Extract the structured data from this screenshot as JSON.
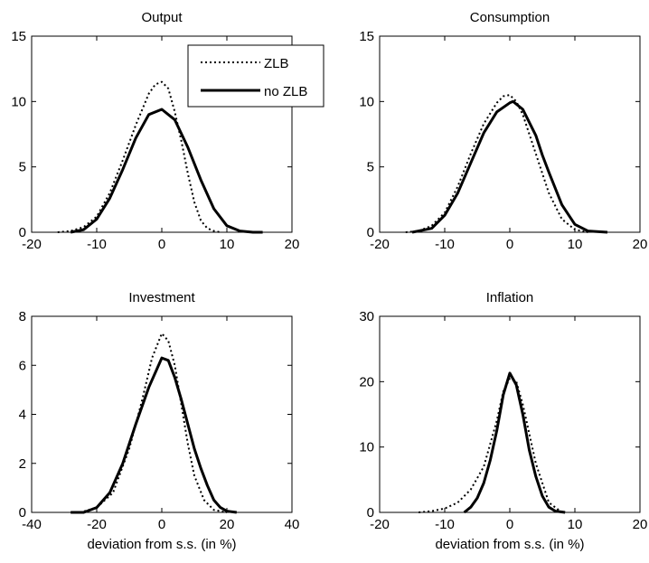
{
  "chart_data": [
    {
      "type": "line",
      "title": "Output",
      "xlabel": "",
      "ylabel": "",
      "xlim": [
        -20,
        20
      ],
      "ylim": [
        0,
        15
      ],
      "xticks": [
        -20,
        -10,
        0,
        10,
        20
      ],
      "yticks": [
        0,
        5,
        10,
        15
      ],
      "legend": {
        "placement": "top-right",
        "entries": [
          "ZLB",
          "no ZLB"
        ]
      },
      "series": [
        {
          "name": "ZLB",
          "style": "dotted",
          "x": [
            -16,
            -14,
            -12,
            -10,
            -8,
            -6,
            -4,
            -2,
            -1,
            0,
            1,
            2,
            3,
            4,
            5,
            6,
            7,
            8,
            9
          ],
          "y": [
            0,
            0.1,
            0.4,
            1.2,
            3.0,
            5.5,
            8.2,
            10.6,
            11.3,
            11.5,
            11.0,
            9.2,
            7.0,
            4.5,
            2.3,
            0.9,
            0.3,
            0.1,
            0
          ]
        },
        {
          "name": "no ZLB",
          "style": "solid",
          "x": [
            -14,
            -12,
            -10,
            -8,
            -6,
            -4,
            -2,
            0,
            2,
            4,
            6,
            8,
            10,
            12,
            14,
            15.5
          ],
          "y": [
            0,
            0.2,
            1.0,
            2.6,
            4.8,
            7.2,
            9.0,
            9.4,
            8.6,
            6.5,
            4.0,
            1.8,
            0.5,
            0.1,
            0,
            0
          ]
        }
      ]
    },
    {
      "type": "line",
      "title": "Consumption",
      "xlabel": "",
      "ylabel": "",
      "xlim": [
        -20,
        20
      ],
      "ylim": [
        0,
        15
      ],
      "xticks": [
        -20,
        -10,
        0,
        10,
        20
      ],
      "yticks": [
        0,
        5,
        10,
        15
      ],
      "series": [
        {
          "name": "ZLB",
          "style": "dotted",
          "x": [
            -16,
            -14,
            -12,
            -10,
            -8,
            -6,
            -4,
            -2,
            -1,
            0,
            1,
            2,
            4,
            6,
            8,
            10,
            12
          ],
          "y": [
            0,
            0.1,
            0.5,
            1.5,
            3.5,
            6.0,
            8.3,
            9.9,
            10.4,
            10.5,
            10.0,
            9.0,
            6.0,
            3.0,
            1.0,
            0.2,
            0
          ]
        },
        {
          "name": "no ZLB",
          "style": "solid",
          "x": [
            -15,
            -12,
            -10,
            -8,
            -6,
            -4,
            -2,
            0,
            0.5,
            2,
            4,
            5,
            6,
            8,
            10,
            12,
            15
          ],
          "y": [
            0,
            0.3,
            1.3,
            3.0,
            5.3,
            7.6,
            9.2,
            9.9,
            10.0,
            9.4,
            7.4,
            5.9,
            4.6,
            2.1,
            0.6,
            0.1,
            0
          ]
        }
      ]
    },
    {
      "type": "line",
      "title": "Investment",
      "xlabel": "deviation from s.s. (in %)",
      "ylabel": "",
      "xlim": [
        -40,
        40
      ],
      "ylim": [
        0,
        8
      ],
      "xticks": [
        -40,
        -20,
        0,
        20,
        40
      ],
      "yticks": [
        0,
        2,
        4,
        6,
        8
      ],
      "series": [
        {
          "name": "ZLB",
          "style": "dotted",
          "x": [
            -28,
            -25,
            -20,
            -15,
            -10,
            -6,
            -3,
            0,
            2,
            4,
            6,
            8,
            10,
            13,
            16,
            20
          ],
          "y": [
            0,
            0,
            0.2,
            0.8,
            2.6,
            4.6,
            6.3,
            7.3,
            7.0,
            6.0,
            4.4,
            2.8,
            1.5,
            0.5,
            0.1,
            0
          ]
        },
        {
          "name": "no ZLB",
          "style": "solid",
          "x": [
            -28,
            -24,
            -20,
            -16,
            -12,
            -8,
            -4,
            0,
            2,
            4,
            6,
            8,
            10,
            12,
            14,
            16,
            18,
            20,
            23
          ],
          "y": [
            0,
            0,
            0.2,
            0.8,
            2.0,
            3.6,
            5.1,
            6.3,
            6.2,
            5.5,
            4.6,
            3.6,
            2.6,
            1.8,
            1.1,
            0.5,
            0.2,
            0.05,
            0
          ]
        }
      ]
    },
    {
      "type": "line",
      "title": "Inflation",
      "xlabel": "deviation from s.s. (in %)",
      "ylabel": "",
      "xlim": [
        -20,
        20
      ],
      "ylim": [
        0,
        30
      ],
      "xticks": [
        -20,
        -10,
        0,
        10,
        20
      ],
      "yticks": [
        0,
        10,
        20,
        30
      ],
      "series": [
        {
          "name": "ZLB",
          "style": "dotted",
          "x": [
            -14,
            -12,
            -10,
            -8,
            -6,
            -4,
            -2,
            -1,
            0,
            1,
            2,
            4,
            6,
            8
          ],
          "y": [
            0,
            0.2,
            0.6,
            1.5,
            3.5,
            7.0,
            14.0,
            18.5,
            20.5,
            20.0,
            16.5,
            7.5,
            1.5,
            0
          ]
        },
        {
          "name": "no ZLB",
          "style": "solid",
          "x": [
            -7,
            -6,
            -5,
            -4,
            -3,
            -2,
            -1,
            0,
            1,
            2,
            3,
            4,
            5,
            6,
            7,
            8.5
          ],
          "y": [
            0,
            0.8,
            2.2,
            4.5,
            8.0,
            12.5,
            18.0,
            21.3,
            19.5,
            15.0,
            9.5,
            5.5,
            2.5,
            0.8,
            0.2,
            0
          ]
        }
      ]
    }
  ]
}
